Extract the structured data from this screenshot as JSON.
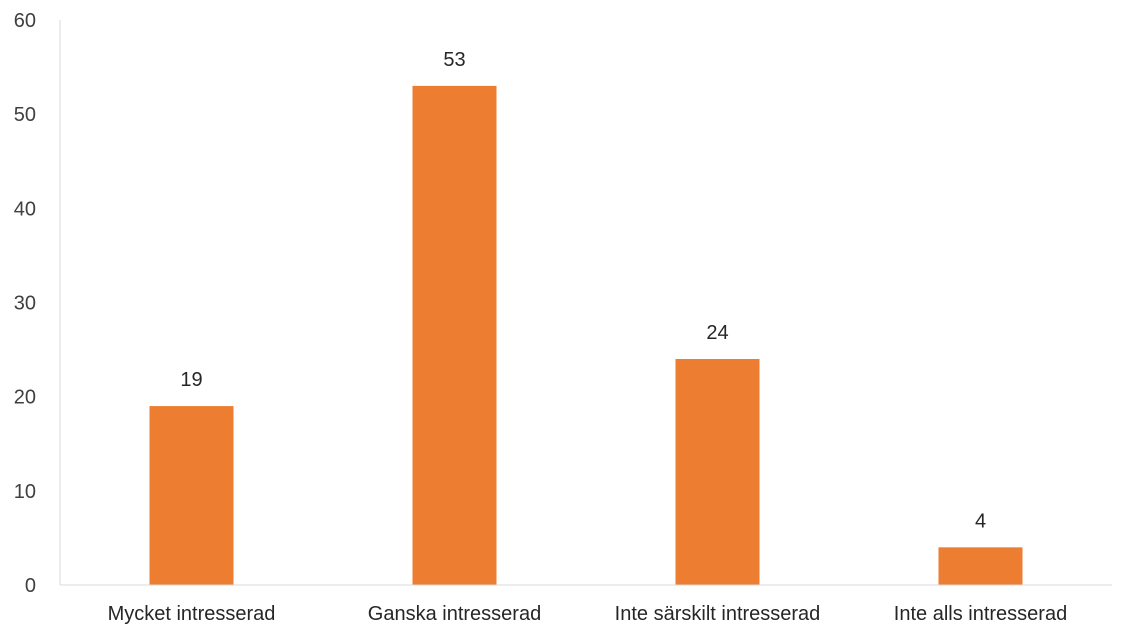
{
  "chart_data": {
    "type": "bar",
    "categories": [
      "Mycket intresserad",
      "Ganska intresserad",
      "Inte särskilt intresserad",
      "Inte alls intresserad"
    ],
    "values": [
      19,
      53,
      24,
      4
    ],
    "data_labels": [
      "19",
      "53",
      "24",
      "4"
    ],
    "y_ticks": [
      "0",
      "10",
      "20",
      "30",
      "40",
      "50",
      "60"
    ],
    "title": "",
    "xlabel": "",
    "ylabel": "",
    "ylim": [
      0,
      60
    ],
    "grid": false,
    "legend": "none",
    "bar_color": "#ED7D31",
    "axis_color": "#D9D9D9"
  }
}
